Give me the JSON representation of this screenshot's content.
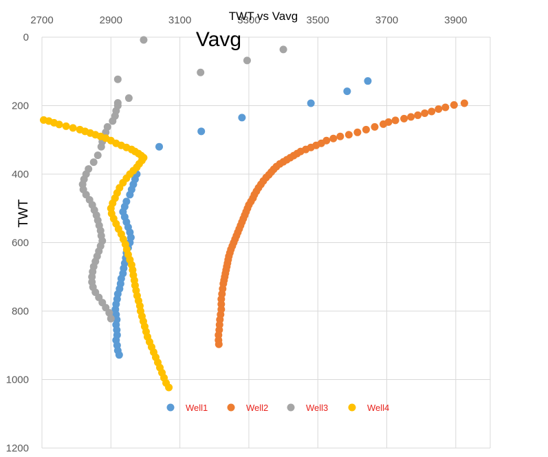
{
  "chart_data": {
    "type": "scatter",
    "title": "TWT vs Vavg",
    "annotation": "Vavg",
    "xlabel": "",
    "ylabel": "TWT",
    "xlim": [
      2700,
      4000
    ],
    "ylim": [
      0,
      1200
    ],
    "y_inverted": true,
    "x_axis_position": "top",
    "x_ticks": [
      2700,
      2900,
      3100,
      3300,
      3500,
      3700,
      3900
    ],
    "y_ticks": [
      0,
      200,
      400,
      600,
      800,
      1000,
      1200
    ],
    "grid": true,
    "legend_position": "bottom-center",
    "series": [
      {
        "name": "Well1",
        "color": "#5b9bd5",
        "points": [
          [
            3645,
            128
          ],
          [
            3585,
            158
          ],
          [
            3480,
            193
          ],
          [
            3280,
            235
          ],
          [
            3162,
            275
          ],
          [
            3040,
            320
          ],
          [
            2975,
            400
          ],
          [
            2970,
            415
          ],
          [
            2965,
            430
          ],
          [
            2960,
            445
          ],
          [
            2955,
            460
          ],
          [
            2945,
            480
          ],
          [
            2940,
            495
          ],
          [
            2935,
            510
          ],
          [
            2940,
            525
          ],
          [
            2945,
            540
          ],
          [
            2950,
            555
          ],
          [
            2955,
            570
          ],
          [
            2958,
            585
          ],
          [
            2955,
            600
          ],
          [
            2950,
            615
          ],
          [
            2945,
            630
          ],
          [
            2943,
            645
          ],
          [
            2940,
            660
          ],
          [
            2937,
            675
          ],
          [
            2935,
            690
          ],
          [
            2930,
            705
          ],
          [
            2928,
            720
          ],
          [
            2925,
            735
          ],
          [
            2920,
            750
          ],
          [
            2918,
            765
          ],
          [
            2915,
            780
          ],
          [
            2913,
            795
          ],
          [
            2915,
            810
          ],
          [
            2917,
            825
          ],
          [
            2915,
            840
          ],
          [
            2917,
            855
          ],
          [
            2918,
            870
          ],
          [
            2915,
            885
          ],
          [
            2918,
            900
          ],
          [
            2920,
            915
          ],
          [
            2924,
            928
          ]
        ]
      },
      {
        "name": "Well2",
        "color": "#ed7d31",
        "points": [
          [
            3925,
            193
          ],
          [
            3895,
            198
          ],
          [
            3870,
            205
          ],
          [
            3850,
            210
          ],
          [
            3830,
            217
          ],
          [
            3810,
            222
          ],
          [
            3790,
            228
          ],
          [
            3770,
            233
          ],
          [
            3750,
            238
          ],
          [
            3725,
            243
          ],
          [
            3705,
            248
          ],
          [
            3690,
            254
          ],
          [
            3665,
            262
          ],
          [
            3640,
            270
          ],
          [
            3615,
            278
          ],
          [
            3590,
            285
          ],
          [
            3565,
            290
          ],
          [
            3545,
            296
          ],
          [
            3525,
            302
          ],
          [
            3510,
            310
          ],
          [
            3495,
            316
          ],
          [
            3480,
            322
          ],
          [
            3465,
            328
          ],
          [
            3450,
            334
          ],
          [
            3440,
            340
          ],
          [
            3430,
            346
          ],
          [
            3420,
            352
          ],
          [
            3410,
            358
          ],
          [
            3400,
            364
          ],
          [
            3390,
            370
          ],
          [
            3380,
            378
          ],
          [
            3372,
            386
          ],
          [
            3365,
            394
          ],
          [
            3358,
            402
          ],
          [
            3350,
            410
          ],
          [
            3342,
            420
          ],
          [
            3335,
            430
          ],
          [
            3328,
            440
          ],
          [
            3322,
            450
          ],
          [
            3316,
            460
          ],
          [
            3312,
            470
          ],
          [
            3306,
            480
          ],
          [
            3300,
            490
          ],
          [
            3296,
            500
          ],
          [
            3292,
            510
          ],
          [
            3288,
            520
          ],
          [
            3284,
            530
          ],
          [
            3280,
            540
          ],
          [
            3276,
            550
          ],
          [
            3272,
            560
          ],
          [
            3268,
            570
          ],
          [
            3264,
            580
          ],
          [
            3260,
            590
          ],
          [
            3256,
            600
          ],
          [
            3252,
            610
          ],
          [
            3248,
            620
          ],
          [
            3245,
            630
          ],
          [
            3242,
            640
          ],
          [
            3240,
            650
          ],
          [
            3238,
            660
          ],
          [
            3236,
            670
          ],
          [
            3234,
            680
          ],
          [
            3232,
            690
          ],
          [
            3230,
            700
          ],
          [
            3228,
            710
          ],
          [
            3226,
            720
          ],
          [
            3224,
            735
          ],
          [
            3222,
            750
          ],
          [
            3220,
            765
          ],
          [
            3220,
            780
          ],
          [
            3220,
            795
          ],
          [
            3218,
            810
          ],
          [
            3216,
            825
          ],
          [
            3215,
            840
          ],
          [
            3214,
            855
          ],
          [
            3212,
            870
          ],
          [
            3212,
            885
          ],
          [
            3213,
            897
          ]
        ]
      },
      {
        "name": "Well3",
        "color": "#a5a5a5",
        "points": [
          [
            2995,
            8
          ],
          [
            3400,
            36
          ],
          [
            3295,
            68
          ],
          [
            3160,
            103
          ],
          [
            2920,
            123
          ],
          [
            2952,
            178
          ],
          [
            2920,
            192
          ],
          [
            2920,
            200
          ],
          [
            2915,
            215
          ],
          [
            2912,
            230
          ],
          [
            2905,
            245
          ],
          [
            2890,
            262
          ],
          [
            2885,
            278
          ],
          [
            2880,
            292
          ],
          [
            2875,
            305
          ],
          [
            2872,
            320
          ],
          [
            2862,
            345
          ],
          [
            2850,
            365
          ],
          [
            2835,
            385
          ],
          [
            2828,
            400
          ],
          [
            2822,
            415
          ],
          [
            2818,
            430
          ],
          [
            2820,
            445
          ],
          [
            2828,
            460
          ],
          [
            2838,
            475
          ],
          [
            2846,
            490
          ],
          [
            2852,
            505
          ],
          [
            2858,
            520
          ],
          [
            2862,
            535
          ],
          [
            2866,
            550
          ],
          [
            2870,
            565
          ],
          [
            2872,
            580
          ],
          [
            2875,
            595
          ],
          [
            2870,
            610
          ],
          [
            2865,
            625
          ],
          [
            2860,
            640
          ],
          [
            2855,
            655
          ],
          [
            2850,
            670
          ],
          [
            2847,
            685
          ],
          [
            2845,
            700
          ],
          [
            2845,
            715
          ],
          [
            2848,
            730
          ],
          [
            2855,
            745
          ],
          [
            2865,
            760
          ],
          [
            2875,
            775
          ],
          [
            2885,
            790
          ],
          [
            2895,
            805
          ],
          [
            2900,
            822
          ]
        ]
      },
      {
        "name": "Well4",
        "color": "#ffc000",
        "points": [
          [
            2705,
            242
          ],
          [
            2720,
            245
          ],
          [
            2735,
            250
          ],
          [
            2750,
            255
          ],
          [
            2770,
            260
          ],
          [
            2790,
            265
          ],
          [
            2810,
            270
          ],
          [
            2825,
            275
          ],
          [
            2840,
            280
          ],
          [
            2855,
            285
          ],
          [
            2870,
            290
          ],
          [
            2885,
            295
          ],
          [
            2900,
            302
          ],
          [
            2915,
            310
          ],
          [
            2930,
            316
          ],
          [
            2945,
            322
          ],
          [
            2960,
            328
          ],
          [
            2970,
            334
          ],
          [
            2980,
            340
          ],
          [
            2988,
            346
          ],
          [
            2995,
            352
          ],
          [
            2990,
            360
          ],
          [
            2982,
            370
          ],
          [
            2975,
            380
          ],
          [
            2965,
            390
          ],
          [
            2955,
            400
          ],
          [
            2945,
            412
          ],
          [
            2935,
            425
          ],
          [
            2925,
            440
          ],
          [
            2918,
            455
          ],
          [
            2912,
            470
          ],
          [
            2905,
            485
          ],
          [
            2900,
            500
          ],
          [
            2902,
            515
          ],
          [
            2908,
            530
          ],
          [
            2915,
            545
          ],
          [
            2922,
            560
          ],
          [
            2930,
            575
          ],
          [
            2936,
            590
          ],
          [
            2942,
            605
          ],
          [
            2946,
            620
          ],
          [
            2950,
            635
          ],
          [
            2955,
            650
          ],
          [
            2960,
            665
          ],
          [
            2963,
            680
          ],
          [
            2965,
            695
          ],
          [
            2968,
            710
          ],
          [
            2970,
            725
          ],
          [
            2973,
            740
          ],
          [
            2976,
            755
          ],
          [
            2980,
            770
          ],
          [
            2984,
            785
          ],
          [
            2986,
            800
          ],
          [
            2990,
            815
          ],
          [
            2994,
            830
          ],
          [
            2998,
            845
          ],
          [
            3002,
            860
          ],
          [
            3006,
            875
          ],
          [
            3012,
            890
          ],
          [
            3018,
            905
          ],
          [
            3024,
            920
          ],
          [
            3030,
            935
          ],
          [
            3036,
            950
          ],
          [
            3042,
            965
          ],
          [
            3048,
            980
          ],
          [
            3054,
            995
          ],
          [
            3060,
            1010
          ],
          [
            3068,
            1023
          ]
        ]
      }
    ]
  }
}
